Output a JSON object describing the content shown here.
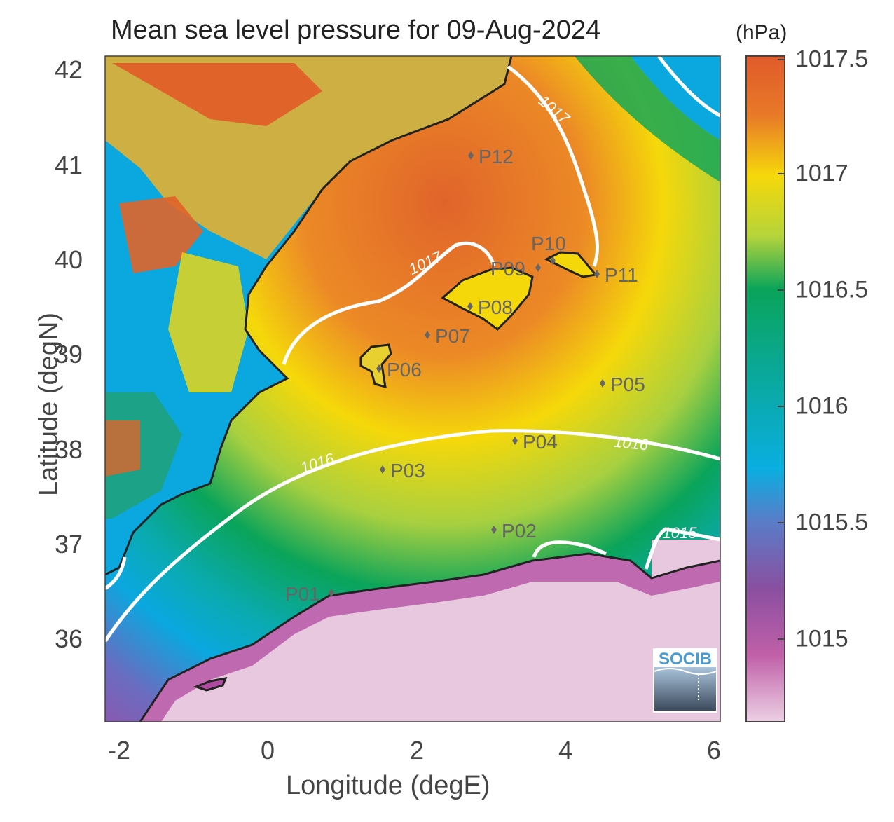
{
  "title": "Mean sea level pressure for 09-Aug-2024",
  "colorbar": {
    "unit": "(hPa)",
    "ticks": [
      "1017.5",
      "1017",
      "1016.5",
      "1016",
      "1015.5",
      "1015"
    ]
  },
  "x_axis": {
    "label": "Longitude (degE)",
    "ticks": [
      "-2",
      "0",
      "2",
      "4",
      "6"
    ]
  },
  "y_axis": {
    "label": "Latitude (degN)",
    "ticks": [
      "42",
      "41",
      "40",
      "39",
      "38",
      "37",
      "36"
    ]
  },
  "contours": {
    "c1017_a": "1017",
    "c1017_b": "1017",
    "c1016_a": "1016",
    "c1016_b": "1016",
    "c1015": "1015"
  },
  "points": [
    {
      "id": "P01"
    },
    {
      "id": "P02"
    },
    {
      "id": "P03"
    },
    {
      "id": "P04"
    },
    {
      "id": "P05"
    },
    {
      "id": "P06"
    },
    {
      "id": "P07"
    },
    {
      "id": "P08"
    },
    {
      "id": "P09"
    },
    {
      "id": "P10"
    },
    {
      "id": "P11"
    },
    {
      "id": "P12"
    }
  ],
  "logo": "SOCIB",
  "colors": {
    "high": "#e0642a",
    "mid_high": "#f5d80a",
    "mid": "#0aa45a",
    "mid_low": "#0aa8df",
    "low": "#8a4fa0",
    "lowest": "#e8c8de",
    "contour": "#ffffff",
    "coast": "#222222"
  }
}
